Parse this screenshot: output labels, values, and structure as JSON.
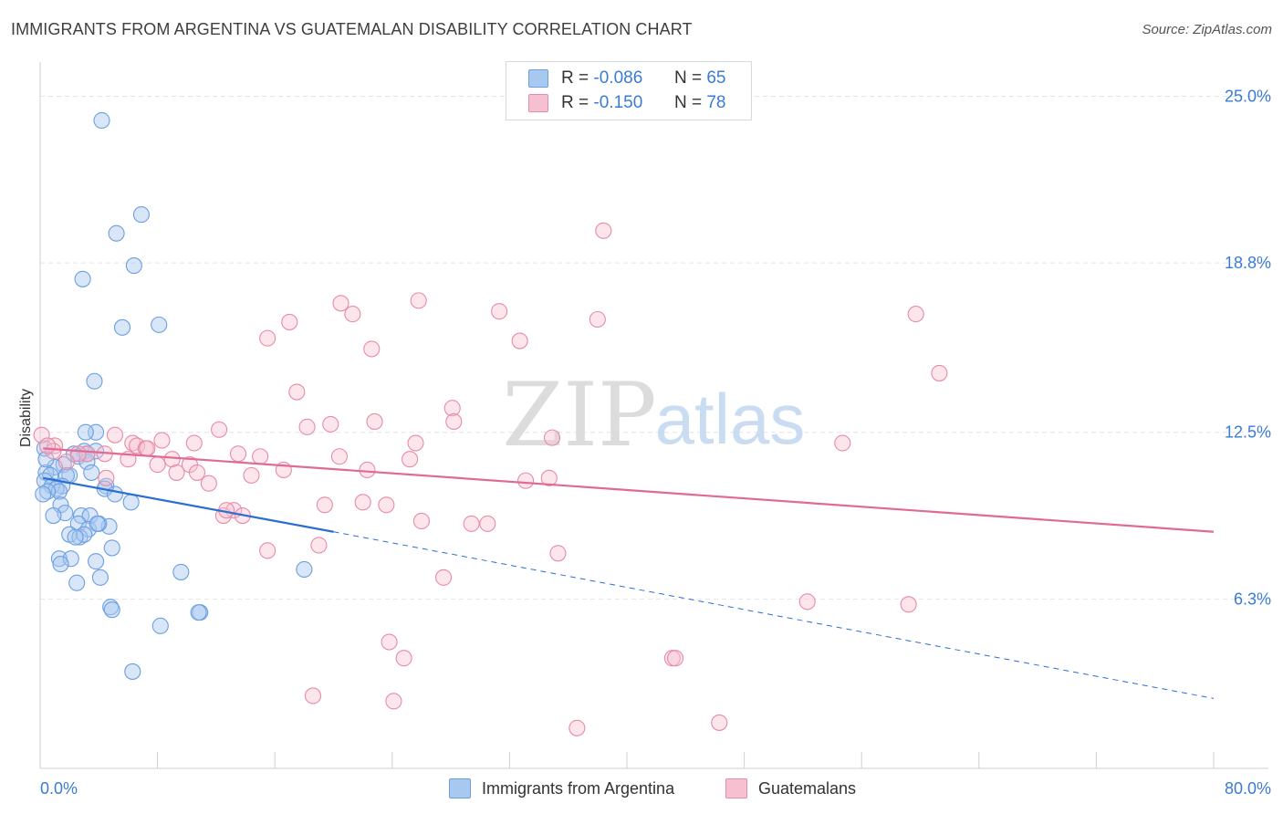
{
  "header": {
    "title": "IMMIGRANTS FROM ARGENTINA VS GUATEMALAN DISABILITY CORRELATION CHART",
    "source": "Source: ZipAtlas.com"
  },
  "watermark": {
    "zip": "ZIP",
    "atlas": "atlas"
  },
  "legend": {
    "rows": [
      {
        "r_label": "R =",
        "r_value": "-0.086",
        "n_label": "N =",
        "n_value": "65",
        "color": "#a9c8f0",
        "border": "#6a9fe0"
      },
      {
        "r_label": "R =",
        "r_value": "-0.150",
        "n_label": "N =",
        "n_value": "78",
        "color": "#f7c0d0",
        "border": "#e88aa8"
      }
    ]
  },
  "bottom_legend": {
    "series1": "Immigrants from Argentina",
    "series2": "Guatemalans"
  },
  "chart_data": {
    "type": "scatter",
    "title": "IMMIGRANTS FROM ARGENTINA VS GUATEMALAN DISABILITY CORRELATION CHART",
    "xlabel": "",
    "ylabel": "Disability",
    "xlim": [
      0,
      80
    ],
    "ylim": [
      0,
      26
    ],
    "x_tick_labels": [
      "0.0%",
      "80.0%"
    ],
    "y_ticks": [
      {
        "value": 25.0,
        "label": "25.0%"
      },
      {
        "value": 18.8,
        "label": "18.8%"
      },
      {
        "value": 12.5,
        "label": "12.5%"
      },
      {
        "value": 6.3,
        "label": "6.3%"
      }
    ],
    "grid": true,
    "series": [
      {
        "name": "Immigrants from Argentina",
        "color": "#6a9fe0",
        "fill": "rgba(169,200,240,0.45)",
        "trend_solid": [
          [
            0.2,
            10.8
          ],
          [
            20.0,
            8.8
          ]
        ],
        "trend_dashed": [
          [
            20.0,
            8.8
          ],
          [
            80.0,
            2.6
          ]
        ],
        "trend_color": "#2a6fd0",
        "points": [
          [
            4.2,
            24.1
          ],
          [
            6.9,
            20.6
          ],
          [
            5.2,
            19.9
          ],
          [
            6.4,
            18.7
          ],
          [
            2.9,
            18.2
          ],
          [
            5.6,
            16.4
          ],
          [
            8.1,
            16.5
          ],
          [
            3.7,
            14.4
          ],
          [
            3.8,
            12.5
          ],
          [
            3.1,
            12.5
          ],
          [
            3.0,
            11.8
          ],
          [
            3.8,
            11.8
          ],
          [
            2.3,
            11.7
          ],
          [
            2.6,
            11.6
          ],
          [
            3.2,
            11.4
          ],
          [
            1.6,
            11.3
          ],
          [
            1.0,
            11.2
          ],
          [
            0.4,
            11.0
          ],
          [
            2.0,
            10.9
          ],
          [
            1.8,
            10.9
          ],
          [
            3.5,
            11.0
          ],
          [
            0.7,
            10.9
          ],
          [
            0.3,
            10.7
          ],
          [
            1.5,
            10.5
          ],
          [
            0.8,
            10.5
          ],
          [
            1.1,
            10.4
          ],
          [
            1.3,
            10.3
          ],
          [
            0.5,
            10.3
          ],
          [
            0.2,
            10.2
          ],
          [
            4.5,
            10.5
          ],
          [
            4.4,
            10.4
          ],
          [
            5.1,
            10.2
          ],
          [
            1.4,
            9.8
          ],
          [
            6.2,
            9.9
          ],
          [
            1.7,
            9.5
          ],
          [
            2.8,
            9.4
          ],
          [
            3.4,
            9.4
          ],
          [
            0.9,
            9.4
          ],
          [
            4.7,
            9.0
          ],
          [
            2.6,
            9.1
          ],
          [
            3.3,
            8.9
          ],
          [
            4.0,
            9.1
          ],
          [
            3.9,
            9.1
          ],
          [
            2.0,
            8.7
          ],
          [
            2.7,
            8.6
          ],
          [
            3.0,
            8.7
          ],
          [
            2.4,
            8.6
          ],
          [
            4.9,
            8.2
          ],
          [
            1.3,
            7.8
          ],
          [
            2.1,
            7.8
          ],
          [
            1.4,
            7.6
          ],
          [
            3.8,
            7.7
          ],
          [
            4.1,
            7.1
          ],
          [
            9.6,
            7.3
          ],
          [
            18.0,
            7.4
          ],
          [
            2.5,
            6.9
          ],
          [
            4.8,
            6.0
          ],
          [
            4.9,
            5.9
          ],
          [
            10.9,
            5.8
          ],
          [
            10.8,
            5.8
          ],
          [
            8.2,
            5.3
          ],
          [
            6.3,
            3.6
          ],
          [
            0.3,
            11.9
          ],
          [
            0.4,
            11.5
          ],
          [
            3.2,
            11.7
          ]
        ]
      },
      {
        "name": "Guatemalans",
        "color": "#e88aa8",
        "fill": "rgba(247,192,208,0.4)",
        "trend_solid": [
          [
            0.2,
            11.9
          ],
          [
            80.0,
            8.8
          ]
        ],
        "trend_color": "#e06a94",
        "points": [
          [
            38.4,
            20.0
          ],
          [
            25.8,
            17.4
          ],
          [
            20.5,
            17.3
          ],
          [
            31.3,
            17.0
          ],
          [
            21.3,
            16.9
          ],
          [
            59.7,
            16.9
          ],
          [
            17.0,
            16.6
          ],
          [
            38.0,
            16.7
          ],
          [
            15.5,
            16.0
          ],
          [
            32.7,
            15.9
          ],
          [
            22.6,
            15.6
          ],
          [
            61.3,
            14.7
          ],
          [
            17.5,
            14.0
          ],
          [
            28.1,
            13.4
          ],
          [
            22.8,
            12.9
          ],
          [
            19.8,
            12.8
          ],
          [
            18.2,
            12.7
          ],
          [
            12.2,
            12.6
          ],
          [
            34.9,
            12.3
          ],
          [
            54.7,
            12.1
          ],
          [
            5.1,
            12.4
          ],
          [
            6.3,
            12.1
          ],
          [
            8.3,
            12.2
          ],
          [
            10.5,
            12.1
          ],
          [
            25.6,
            12.1
          ],
          [
            0.1,
            12.4
          ],
          [
            1.0,
            12.0
          ],
          [
            3.2,
            11.7
          ],
          [
            6.6,
            12.0
          ],
          [
            7.2,
            11.9
          ],
          [
            0.9,
            11.8
          ],
          [
            2.6,
            11.7
          ],
          [
            4.4,
            11.7
          ],
          [
            13.5,
            11.7
          ],
          [
            15.0,
            11.6
          ],
          [
            25.2,
            11.5
          ],
          [
            6.0,
            11.5
          ],
          [
            9.0,
            11.5
          ],
          [
            10.2,
            11.3
          ],
          [
            8.0,
            11.3
          ],
          [
            1.8,
            11.4
          ],
          [
            22.3,
            11.1
          ],
          [
            16.6,
            11.1
          ],
          [
            10.7,
            11.0
          ],
          [
            9.3,
            11.0
          ],
          [
            14.4,
            10.9
          ],
          [
            4.5,
            10.8
          ],
          [
            33.1,
            10.7
          ],
          [
            11.5,
            10.6
          ],
          [
            22.0,
            9.9
          ],
          [
            23.6,
            9.8
          ],
          [
            19.4,
            9.8
          ],
          [
            13.2,
            9.6
          ],
          [
            13.8,
            9.4
          ],
          [
            12.5,
            9.4
          ],
          [
            26.0,
            9.2
          ],
          [
            29.4,
            9.1
          ],
          [
            30.5,
            9.1
          ],
          [
            19.0,
            8.3
          ],
          [
            15.5,
            8.1
          ],
          [
            35.3,
            8.0
          ],
          [
            27.5,
            7.1
          ],
          [
            52.3,
            6.2
          ],
          [
            59.2,
            6.1
          ],
          [
            23.8,
            4.7
          ],
          [
            24.8,
            4.1
          ],
          [
            43.1,
            4.1
          ],
          [
            43.3,
            4.1
          ],
          [
            18.6,
            2.7
          ],
          [
            24.1,
            2.5
          ],
          [
            36.6,
            1.5
          ],
          [
            46.3,
            1.7
          ],
          [
            28.2,
            12.9
          ],
          [
            34.7,
            10.8
          ],
          [
            12.7,
            9.6
          ],
          [
            7.3,
            11.9
          ],
          [
            20.4,
            11.6
          ],
          [
            0.5,
            12.0
          ]
        ]
      }
    ]
  }
}
